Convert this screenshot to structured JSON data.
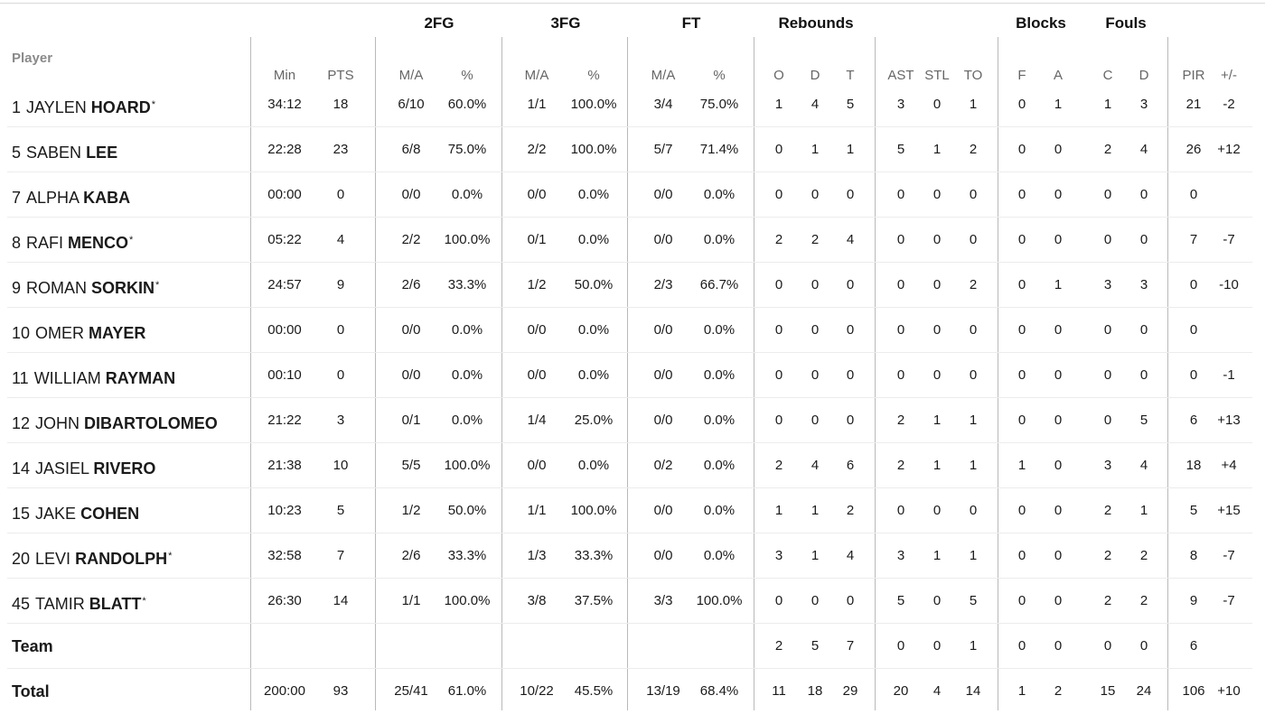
{
  "header": {
    "player": "Player",
    "groups": {
      "fg2": "2FG",
      "fg3": "3FG",
      "ft": "FT",
      "rebounds": "Rebounds",
      "blocks": "Blocks",
      "fouls": "Fouls"
    },
    "columns": {
      "min": "Min",
      "pts": "PTS",
      "fg2_ma": "M/A",
      "fg2_pct": "%",
      "fg3_ma": "M/A",
      "fg3_pct": "%",
      "ft_ma": "M/A",
      "ft_pct": "%",
      "reb_o": "O",
      "reb_d": "D",
      "reb_t": "T",
      "ast": "AST",
      "stl": "STL",
      "to": "TO",
      "blk_f": "F",
      "blk_a": "A",
      "foul_c": "C",
      "foul_d": "D",
      "pir": "PIR",
      "pm": "+/-"
    }
  },
  "rows": [
    {
      "num": "1",
      "first": "JAYLEN",
      "last": "HOARD",
      "starter": "*",
      "min": "34:12",
      "pts": "18",
      "fg2_ma": "6/10",
      "fg2_pct": "60.0%",
      "fg3_ma": "1/1",
      "fg3_pct": "100.0%",
      "ft_ma": "3/4",
      "ft_pct": "75.0%",
      "reb_o": "1",
      "reb_d": "4",
      "reb_t": "5",
      "ast": "3",
      "stl": "0",
      "to": "1",
      "blk_f": "0",
      "blk_a": "1",
      "foul_c": "1",
      "foul_d": "3",
      "pir": "21",
      "pm": "-2"
    },
    {
      "num": "5",
      "first": "SABEN",
      "last": "LEE",
      "starter": "",
      "min": "22:28",
      "pts": "23",
      "fg2_ma": "6/8",
      "fg2_pct": "75.0%",
      "fg3_ma": "2/2",
      "fg3_pct": "100.0%",
      "ft_ma": "5/7",
      "ft_pct": "71.4%",
      "reb_o": "0",
      "reb_d": "1",
      "reb_t": "1",
      "ast": "5",
      "stl": "1",
      "to": "2",
      "blk_f": "0",
      "blk_a": "0",
      "foul_c": "2",
      "foul_d": "4",
      "pir": "26",
      "pm": "+12"
    },
    {
      "num": "7",
      "first": "ALPHA",
      "last": "KABA",
      "starter": "",
      "min": "00:00",
      "pts": "0",
      "fg2_ma": "0/0",
      "fg2_pct": "0.0%",
      "fg3_ma": "0/0",
      "fg3_pct": "0.0%",
      "ft_ma": "0/0",
      "ft_pct": "0.0%",
      "reb_o": "0",
      "reb_d": "0",
      "reb_t": "0",
      "ast": "0",
      "stl": "0",
      "to": "0",
      "blk_f": "0",
      "blk_a": "0",
      "foul_c": "0",
      "foul_d": "0",
      "pir": "0",
      "pm": ""
    },
    {
      "num": "8",
      "first": "RAFI",
      "last": "MENCO",
      "starter": "*",
      "min": "05:22",
      "pts": "4",
      "fg2_ma": "2/2",
      "fg2_pct": "100.0%",
      "fg3_ma": "0/1",
      "fg3_pct": "0.0%",
      "ft_ma": "0/0",
      "ft_pct": "0.0%",
      "reb_o": "2",
      "reb_d": "2",
      "reb_t": "4",
      "ast": "0",
      "stl": "0",
      "to": "0",
      "blk_f": "0",
      "blk_a": "0",
      "foul_c": "0",
      "foul_d": "0",
      "pir": "7",
      "pm": "-7"
    },
    {
      "num": "9",
      "first": "ROMAN",
      "last": "SORKIN",
      "starter": "*",
      "min": "24:57",
      "pts": "9",
      "fg2_ma": "2/6",
      "fg2_pct": "33.3%",
      "fg3_ma": "1/2",
      "fg3_pct": "50.0%",
      "ft_ma": "2/3",
      "ft_pct": "66.7%",
      "reb_o": "0",
      "reb_d": "0",
      "reb_t": "0",
      "ast": "0",
      "stl": "0",
      "to": "2",
      "blk_f": "0",
      "blk_a": "1",
      "foul_c": "3",
      "foul_d": "3",
      "pir": "0",
      "pm": "-10"
    },
    {
      "num": "10",
      "first": "OMER",
      "last": "MAYER",
      "starter": "",
      "min": "00:00",
      "pts": "0",
      "fg2_ma": "0/0",
      "fg2_pct": "0.0%",
      "fg3_ma": "0/0",
      "fg3_pct": "0.0%",
      "ft_ma": "0/0",
      "ft_pct": "0.0%",
      "reb_o": "0",
      "reb_d": "0",
      "reb_t": "0",
      "ast": "0",
      "stl": "0",
      "to": "0",
      "blk_f": "0",
      "blk_a": "0",
      "foul_c": "0",
      "foul_d": "0",
      "pir": "0",
      "pm": ""
    },
    {
      "num": "11",
      "first": "WILLIAM",
      "last": "RAYMAN",
      "starter": "",
      "min": "00:10",
      "pts": "0",
      "fg2_ma": "0/0",
      "fg2_pct": "0.0%",
      "fg3_ma": "0/0",
      "fg3_pct": "0.0%",
      "ft_ma": "0/0",
      "ft_pct": "0.0%",
      "reb_o": "0",
      "reb_d": "0",
      "reb_t": "0",
      "ast": "0",
      "stl": "0",
      "to": "0",
      "blk_f": "0",
      "blk_a": "0",
      "foul_c": "0",
      "foul_d": "0",
      "pir": "0",
      "pm": "-1"
    },
    {
      "num": "12",
      "first": "JOHN",
      "last": "DIBARTOLOMEO",
      "starter": "",
      "min": "21:22",
      "pts": "3",
      "fg2_ma": "0/1",
      "fg2_pct": "0.0%",
      "fg3_ma": "1/4",
      "fg3_pct": "25.0%",
      "ft_ma": "0/0",
      "ft_pct": "0.0%",
      "reb_o": "0",
      "reb_d": "0",
      "reb_t": "0",
      "ast": "2",
      "stl": "1",
      "to": "1",
      "blk_f": "0",
      "blk_a": "0",
      "foul_c": "0",
      "foul_d": "5",
      "pir": "6",
      "pm": "+13"
    },
    {
      "num": "14",
      "first": "JASIEL",
      "last": "RIVERO",
      "starter": "",
      "min": "21:38",
      "pts": "10",
      "fg2_ma": "5/5",
      "fg2_pct": "100.0%",
      "fg3_ma": "0/0",
      "fg3_pct": "0.0%",
      "ft_ma": "0/2",
      "ft_pct": "0.0%",
      "reb_o": "2",
      "reb_d": "4",
      "reb_t": "6",
      "ast": "2",
      "stl": "1",
      "to": "1",
      "blk_f": "1",
      "blk_a": "0",
      "foul_c": "3",
      "foul_d": "4",
      "pir": "18",
      "pm": "+4"
    },
    {
      "num": "15",
      "first": "JAKE",
      "last": "COHEN",
      "starter": "",
      "min": "10:23",
      "pts": "5",
      "fg2_ma": "1/2",
      "fg2_pct": "50.0%",
      "fg3_ma": "1/1",
      "fg3_pct": "100.0%",
      "ft_ma": "0/0",
      "ft_pct": "0.0%",
      "reb_o": "1",
      "reb_d": "1",
      "reb_t": "2",
      "ast": "0",
      "stl": "0",
      "to": "0",
      "blk_f": "0",
      "blk_a": "0",
      "foul_c": "2",
      "foul_d": "1",
      "pir": "5",
      "pm": "+15"
    },
    {
      "num": "20",
      "first": "LEVI",
      "last": "RANDOLPH",
      "starter": "*",
      "min": "32:58",
      "pts": "7",
      "fg2_ma": "2/6",
      "fg2_pct": "33.3%",
      "fg3_ma": "1/3",
      "fg3_pct": "33.3%",
      "ft_ma": "0/0",
      "ft_pct": "0.0%",
      "reb_o": "3",
      "reb_d": "1",
      "reb_t": "4",
      "ast": "3",
      "stl": "1",
      "to": "1",
      "blk_f": "0",
      "blk_a": "0",
      "foul_c": "2",
      "foul_d": "2",
      "pir": "8",
      "pm": "-7"
    },
    {
      "num": "45",
      "first": "TAMIR",
      "last": "BLATT",
      "starter": "*",
      "min": "26:30",
      "pts": "14",
      "fg2_ma": "1/1",
      "fg2_pct": "100.0%",
      "fg3_ma": "3/8",
      "fg3_pct": "37.5%",
      "ft_ma": "3/3",
      "ft_pct": "100.0%",
      "reb_o": "0",
      "reb_d": "0",
      "reb_t": "0",
      "ast": "5",
      "stl": "0",
      "to": "5",
      "blk_f": "0",
      "blk_a": "0",
      "foul_c": "2",
      "foul_d": "2",
      "pir": "9",
      "pm": "-7"
    },
    {
      "label": "Team",
      "min": "",
      "pts": "",
      "fg2_ma": "",
      "fg2_pct": "",
      "fg3_ma": "",
      "fg3_pct": "",
      "ft_ma": "",
      "ft_pct": "",
      "reb_o": "2",
      "reb_d": "5",
      "reb_t": "7",
      "ast": "0",
      "stl": "0",
      "to": "1",
      "blk_f": "0",
      "blk_a": "0",
      "foul_c": "0",
      "foul_d": "0",
      "pir": "6",
      "pm": ""
    },
    {
      "label": "Total",
      "min": "200:00",
      "pts": "93",
      "fg2_ma": "25/41",
      "fg2_pct": "61.0%",
      "fg3_ma": "10/22",
      "fg3_pct": "45.5%",
      "ft_ma": "13/19",
      "ft_pct": "68.4%",
      "reb_o": "11",
      "reb_d": "18",
      "reb_t": "29",
      "ast": "20",
      "stl": "4",
      "to": "14",
      "blk_f": "1",
      "blk_a": "2",
      "foul_c": "15",
      "foul_d": "24",
      "pir": "106",
      "pm": "+10"
    }
  ]
}
